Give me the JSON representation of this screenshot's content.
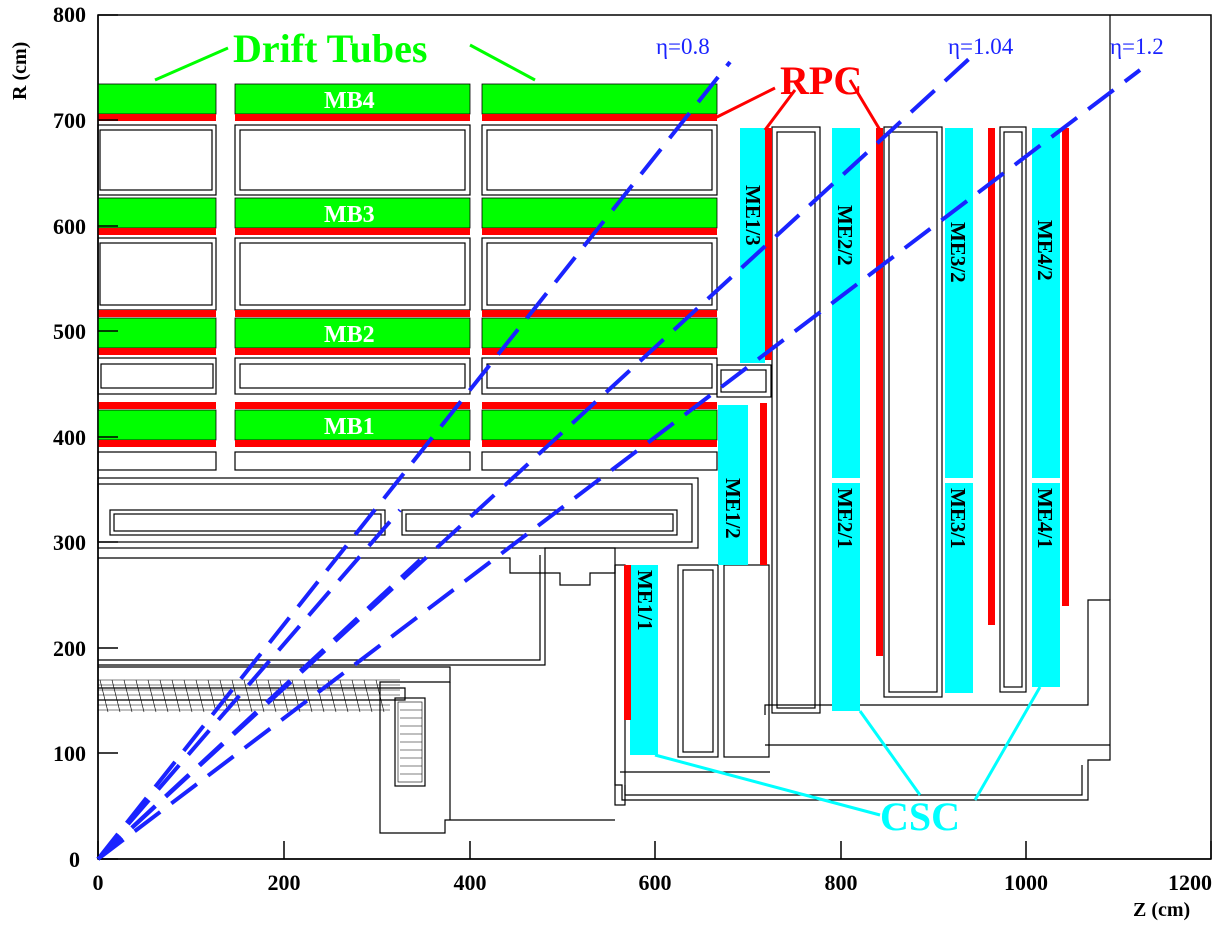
{
  "axes": {
    "x_title": "Z (cm)",
    "y_title": "R (cm)",
    "x_ticks": [
      "0",
      "200",
      "400",
      "600",
      "800",
      "1000",
      "1200"
    ],
    "y_ticks": [
      "0",
      "100",
      "200",
      "300",
      "400",
      "500",
      "600",
      "700",
      "800"
    ]
  },
  "labels": {
    "drift_tubes": "Drift Tubes",
    "rpc": "RPC",
    "csc": "CSC",
    "eta_08": "η=0.8",
    "eta_104": "η=1.04",
    "eta_12": "η=1.2"
  },
  "barrel_stations": [
    "MB1",
    "MB2",
    "MB3",
    "MB4"
  ],
  "endcap_chambers": {
    "me11": "ME1/1",
    "me12": "ME1/2",
    "me13": "ME1/3",
    "me21": "ME2/1",
    "me22": "ME2/2",
    "me31": "ME3/1",
    "me32": "ME3/2",
    "me41": "ME4/1",
    "me42": "ME4/2"
  },
  "colors": {
    "drift_tubes": "#00ff00",
    "rpc": "#ff0000",
    "csc": "#00ffff",
    "eta_lines": "#0000ff"
  }
}
